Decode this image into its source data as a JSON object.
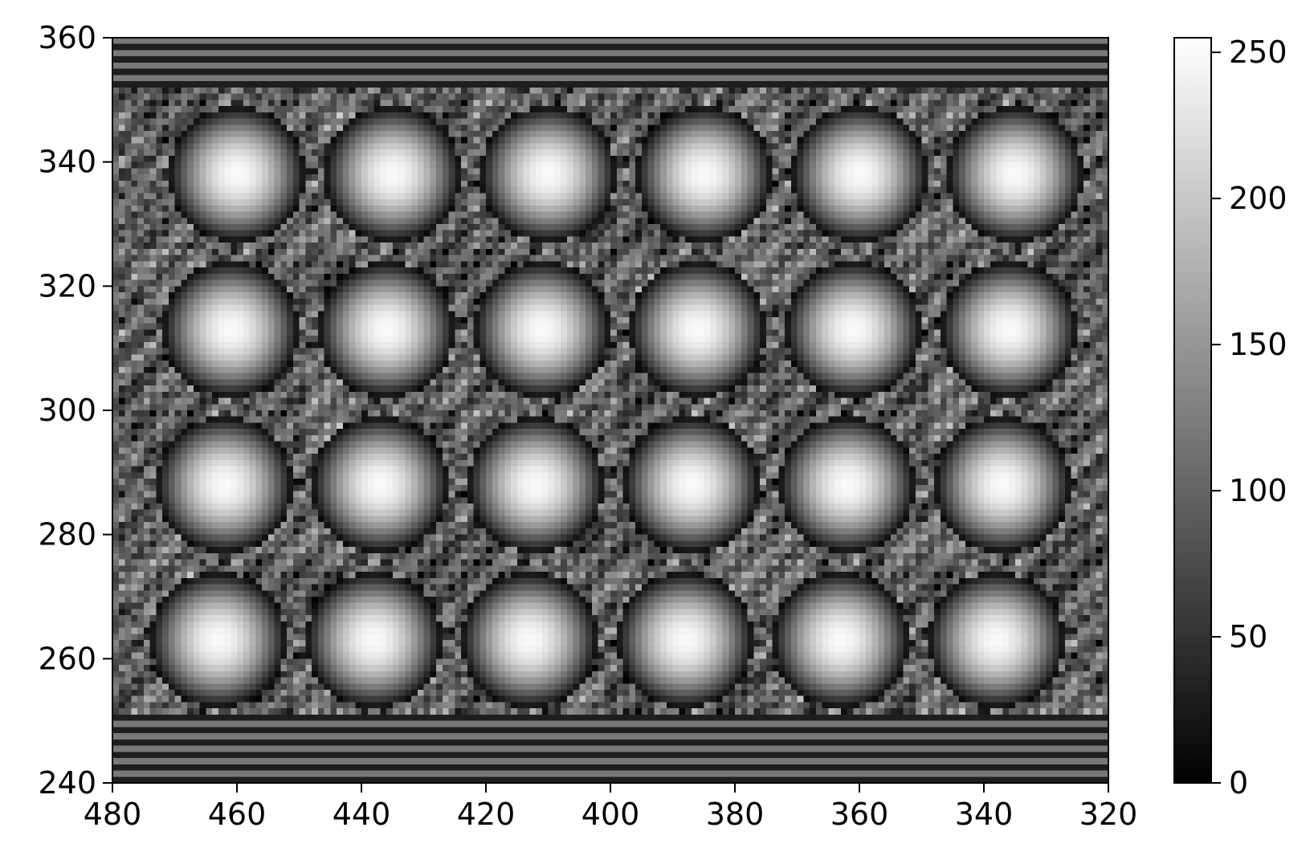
{
  "chart_data": {
    "type": "heatmap",
    "title": "",
    "xlabel": "",
    "ylabel": "",
    "colormap": "gray",
    "x_range": [
      480,
      320
    ],
    "y_range": [
      240,
      360
    ],
    "x_ticks": [
      480,
      460,
      440,
      420,
      400,
      380,
      360,
      340,
      320
    ],
    "y_ticks": [
      240,
      260,
      280,
      300,
      320,
      340,
      360
    ],
    "colorbar": {
      "range": [
        0,
        255
      ],
      "ticks": [
        0,
        50,
        100,
        150,
        200,
        250
      ]
    },
    "pattern": {
      "description_of_values": "pixel intensity 0-255",
      "data_y_start": 251,
      "data_y_end": 352,
      "grid_rows": 4,
      "grid_cols": 6,
      "spot_row_centers_y": [
        263,
        288,
        313,
        338
      ],
      "spot_col_centers_x": [
        463,
        438,
        413,
        388,
        363,
        338
      ],
      "spot_radius": 11,
      "peak_value": 250,
      "stripe_values": [
        30,
        120
      ]
    },
    "grid": false,
    "legend": "none"
  },
  "colors": {
    "axis": "#000000",
    "background": "#ffffff"
  }
}
